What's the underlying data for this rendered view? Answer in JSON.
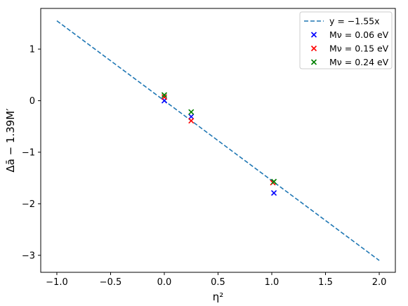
{
  "chart_data": {
    "type": "scatter",
    "title": "",
    "xlabel": "η²",
    "ylabel": "Δā − 1.39M′",
    "xlim": [
      -1.15,
      2.15
    ],
    "ylim": [
      -3.33,
      1.79
    ],
    "x_ticks": [
      -1.0,
      -0.5,
      0.0,
      0.5,
      1.0,
      1.5,
      2.0
    ],
    "y_ticks": [
      -3,
      -2,
      -1,
      0,
      1
    ],
    "x_tick_labels": [
      "−1.0",
      "−0.5",
      "0.0",
      "0.5",
      "1.0",
      "1.5",
      "2.0"
    ],
    "y_tick_labels": [
      "−3",
      "−2",
      "−1",
      "0",
      "1"
    ],
    "grid": false,
    "legend_position": "top-right",
    "line": {
      "label": "y = −1.55x",
      "slope": -1.55,
      "x_range": [
        -1.0,
        2.0
      ],
      "color": "#1f77b4",
      "style": "dashed"
    },
    "series": [
      {
        "name": "Mν = 0.06 eV",
        "color": "#0000ff",
        "marker": "x",
        "points": [
          [
            0.0,
            0.0
          ],
          [
            0.25,
            -0.31
          ],
          [
            1.02,
            -1.79
          ]
        ]
      },
      {
        "name": "Mν = 0.15 eV",
        "color": "#ff0000",
        "marker": "x",
        "points": [
          [
            0.0,
            0.07
          ],
          [
            0.25,
            -0.39
          ],
          [
            1.01,
            -1.59
          ]
        ]
      },
      {
        "name": "Mν = 0.24 eV",
        "color": "#008000",
        "marker": "x",
        "points": [
          [
            0.0,
            0.11
          ],
          [
            0.25,
            -0.22
          ],
          [
            1.02,
            -1.57
          ]
        ]
      }
    ]
  }
}
